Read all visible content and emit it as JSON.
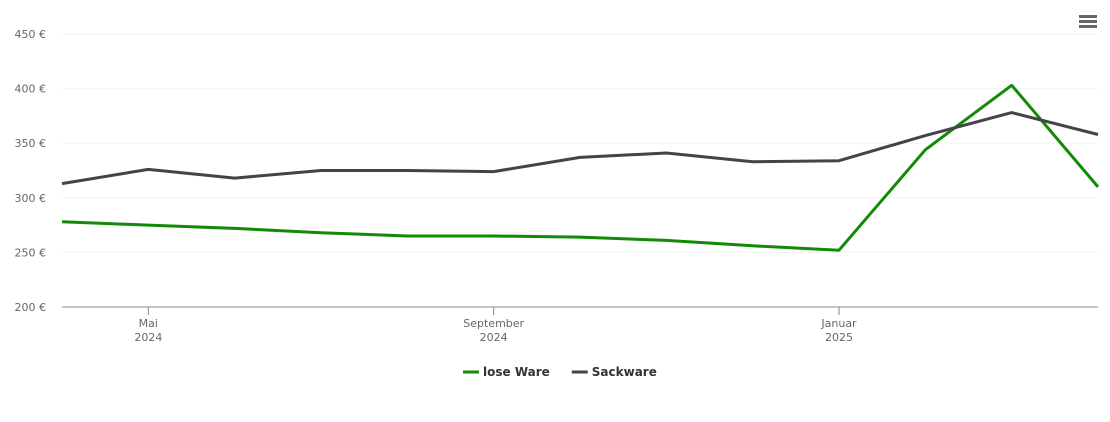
{
  "chart_data": {
    "type": "line",
    "x": [
      "2024-04",
      "2024-05",
      "2024-06",
      "2024-07",
      "2024-08",
      "2024-09",
      "2024-10",
      "2024-11",
      "2024-12",
      "2025-01",
      "2025-02",
      "2025-03",
      "2025-04"
    ],
    "xlim": [
      "2024-04",
      "2025-04"
    ],
    "xticks": [
      {
        "value": "2024-05",
        "label": [
          "Mai",
          "2024"
        ]
      },
      {
        "value": "2024-09",
        "label": [
          "September",
          "2024"
        ]
      },
      {
        "value": "2025-01",
        "label": [
          "Januar",
          "2025"
        ]
      }
    ],
    "ylim": [
      200,
      450
    ],
    "yticks": [
      {
        "value": 200,
        "label": "200 €"
      },
      {
        "value": 250,
        "label": "250 €"
      },
      {
        "value": 300,
        "label": "300 €"
      },
      {
        "value": 350,
        "label": "350 €"
      },
      {
        "value": 400,
        "label": "400 €"
      },
      {
        "value": 450,
        "label": "450 €"
      }
    ],
    "grid": true,
    "legend": "bottom",
    "series": [
      {
        "name": "lose Ware",
        "color": "#138a07",
        "values": [
          278,
          275,
          272,
          268,
          265,
          265,
          264,
          261,
          256,
          252,
          344,
          403,
          310
        ]
      },
      {
        "name": "Sackware",
        "color": "#434348",
        "values": [
          313,
          326,
          318,
          325,
          325,
          324,
          337,
          341,
          333,
          334,
          357,
          378,
          358
        ]
      }
    ]
  }
}
